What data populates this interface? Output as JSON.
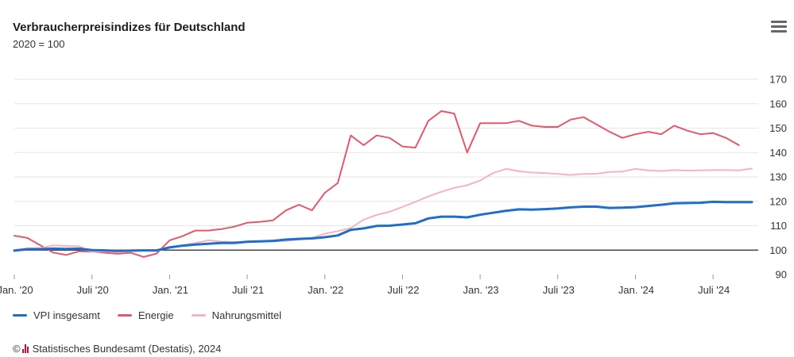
{
  "title": "Verbraucherpreisindizes für Deutschland",
  "subtitle": "2020 = 100",
  "menu_icon": "hamburger-menu-icon",
  "credit": "Statistisches Bundesamt (Destatis), 2024",
  "credit_symbol": "©",
  "chart_data": {
    "type": "line",
    "title": "Verbraucherpreisindizes für Deutschland",
    "subtitle": "2020 = 100",
    "xlabel": "",
    "ylabel": "",
    "ylim": [
      90,
      170
    ],
    "y_ticks": [
      90,
      100,
      110,
      120,
      130,
      140,
      150,
      160,
      170
    ],
    "y_axis_position": "right",
    "reference_line": 100,
    "grid": true,
    "legend_position": "bottom-left",
    "x_tick_labels": [
      "Jan. '20",
      "Juli '20",
      "Jan. '21",
      "Juli '21",
      "Jan. '22",
      "Juli '22",
      "Jan. '23",
      "Juli '23",
      "Jan. '24",
      "Juli '24"
    ],
    "x_tick_months": [
      "2020-01",
      "2020-07",
      "2021-01",
      "2021-07",
      "2022-01",
      "2022-07",
      "2023-01",
      "2023-07",
      "2024-01",
      "2024-07"
    ],
    "x_start": "2020-01",
    "x_end": "2024-10",
    "x": [
      "2020-01",
      "2020-02",
      "2020-03",
      "2020-04",
      "2020-05",
      "2020-06",
      "2020-07",
      "2020-08",
      "2020-09",
      "2020-10",
      "2020-11",
      "2020-12",
      "2021-01",
      "2021-02",
      "2021-03",
      "2021-04",
      "2021-05",
      "2021-06",
      "2021-07",
      "2021-08",
      "2021-09",
      "2021-10",
      "2021-11",
      "2021-12",
      "2022-01",
      "2022-02",
      "2022-03",
      "2022-04",
      "2022-05",
      "2022-06",
      "2022-07",
      "2022-08",
      "2022-09",
      "2022-10",
      "2022-11",
      "2022-12",
      "2023-01",
      "2023-02",
      "2023-03",
      "2023-04",
      "2023-05",
      "2023-06",
      "2023-07",
      "2023-08",
      "2023-09",
      "2023-10",
      "2023-11",
      "2023-12",
      "2024-01",
      "2024-02",
      "2024-03",
      "2024-04",
      "2024-05",
      "2024-06",
      "2024-07",
      "2024-08",
      "2024-09",
      "2024-10"
    ],
    "series": [
      {
        "name": "VPI insgesamt",
        "color": "#1f6ec9",
        "values": [
          99.8,
          100.3,
          100.4,
          100.6,
          100.5,
          100.6,
          100.0,
          99.9,
          99.7,
          99.8,
          99.9,
          99.9,
          101.1,
          101.8,
          102.3,
          102.6,
          102.9,
          102.9,
          103.4,
          103.6,
          103.8,
          104.3,
          104.6,
          104.8,
          105.3,
          106.0,
          108.3,
          108.9,
          109.9,
          110.0,
          110.5,
          111.0,
          113.0,
          113.7,
          113.7,
          113.4,
          114.5,
          115.3,
          116.1,
          116.7,
          116.6,
          116.8,
          117.1,
          117.5,
          117.8,
          117.8,
          117.3,
          117.4,
          117.6,
          118.1,
          118.6,
          119.2,
          119.3,
          119.4,
          119.8,
          119.7,
          119.7,
          119.7
        ]
      },
      {
        "name": "Energie",
        "color": "#e5586c",
        "values": [
          105.9,
          105.0,
          102.0,
          99.0,
          98.0,
          99.5,
          99.3,
          98.9,
          98.5,
          98.9,
          97.2,
          98.6,
          104.0,
          105.7,
          108.0,
          108.0,
          108.6,
          109.6,
          111.2,
          111.6,
          112.2,
          116.3,
          118.6,
          116.3,
          123.5,
          127.5,
          147.0,
          143.0,
          147.0,
          146.0,
          142.5,
          142.0,
          153.0,
          157.0,
          156.0,
          140.0,
          152.0,
          152.0,
          152.0,
          153.0,
          151.0,
          150.5,
          150.5,
          153.5,
          154.5,
          151.5,
          148.5,
          146.0,
          147.5,
          148.5,
          147.5,
          151.0,
          149.0,
          147.5,
          148.0,
          146.0,
          143.0,
          null
        ]
      },
      {
        "name": "Nahrungsmittel",
        "color": "#f5b3bf",
        "values": [
          100.0,
          100.8,
          100.8,
          101.9,
          101.7,
          101.6,
          99.2,
          99.5,
          99.2,
          99.6,
          99.8,
          99.6,
          101.3,
          102.0,
          102.9,
          104.0,
          103.5,
          103.3,
          103.5,
          103.7,
          103.6,
          103.8,
          104.3,
          105.0,
          106.7,
          107.8,
          109.0,
          112.5,
          114.4,
          115.7,
          117.7,
          119.8,
          122.0,
          123.9,
          125.5,
          126.6,
          128.5,
          131.6,
          133.3,
          132.3,
          131.8,
          131.6,
          131.2,
          130.8,
          131.2,
          131.3,
          132.0,
          132.2,
          133.3,
          132.7,
          132.4,
          132.8,
          132.6,
          132.7,
          132.8,
          132.8,
          132.7,
          133.4
        ]
      }
    ]
  }
}
